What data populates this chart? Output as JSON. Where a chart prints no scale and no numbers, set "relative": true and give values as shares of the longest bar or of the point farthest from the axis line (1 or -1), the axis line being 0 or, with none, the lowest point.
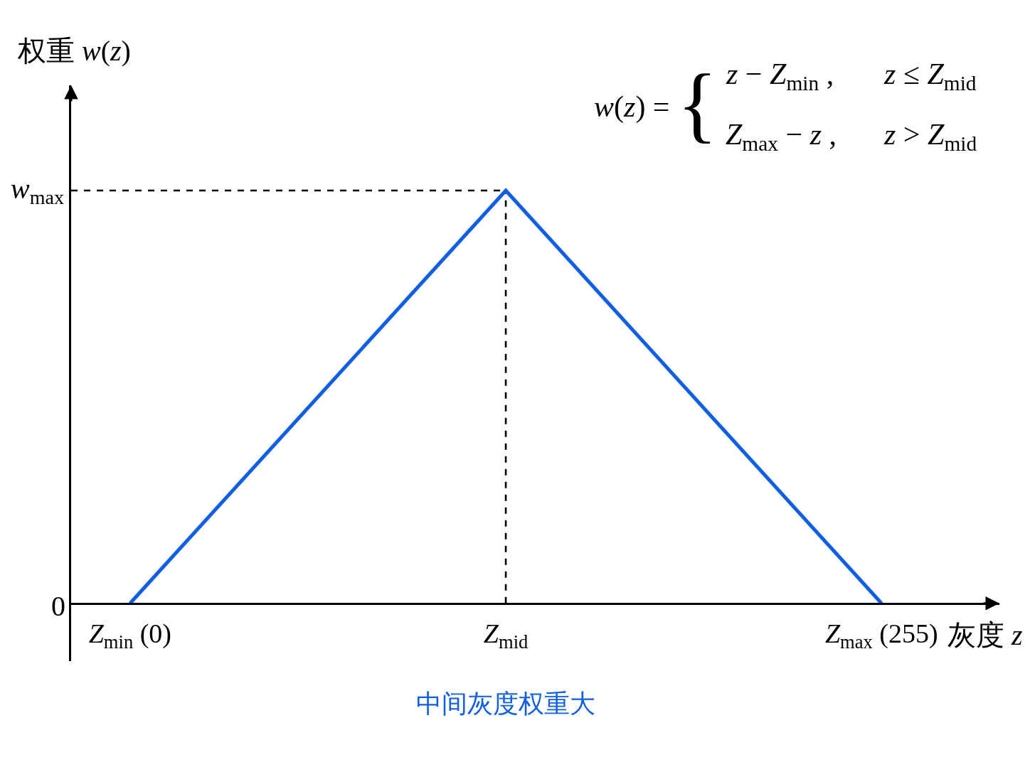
{
  "chart_data": {
    "type": "line",
    "xlabel": "灰度 z",
    "ylabel": "权重 w(z)",
    "relative": true,
    "x": [
      0,
      127.5,
      255
    ],
    "series": [
      {
        "color": "#0f5ee8",
        "values": [
          0,
          1,
          0
        ]
      }
    ],
    "xlim": [
      -20,
      295
    ],
    "xticks": [
      {
        "value": 0,
        "label": "Z$_{min}$ (0)"
      },
      {
        "value": 127.5,
        "label": "Z$_{mid}$"
      },
      {
        "value": 255,
        "label": "Z$_{max}$ (255)"
      }
    ],
    "ref_lines": [
      {
        "axis": "y",
        "value": 1,
        "label": "w$_{max}$",
        "color": "#000000",
        "line_style": "dashed"
      },
      {
        "axis": "x",
        "value": 127.5,
        "color": "#000000",
        "line_style": "dashed"
      }
    ],
    "annotations": [
      "w(z) =",
      "{",
      "z − Z$_{min}$ ,",
      "z ≤ Z$_{mid}$",
      "Z$_{max}$ − z ,",
      "z > Z$_{mid}$",
      "中间灰度权重大",
      "0"
    ]
  }
}
